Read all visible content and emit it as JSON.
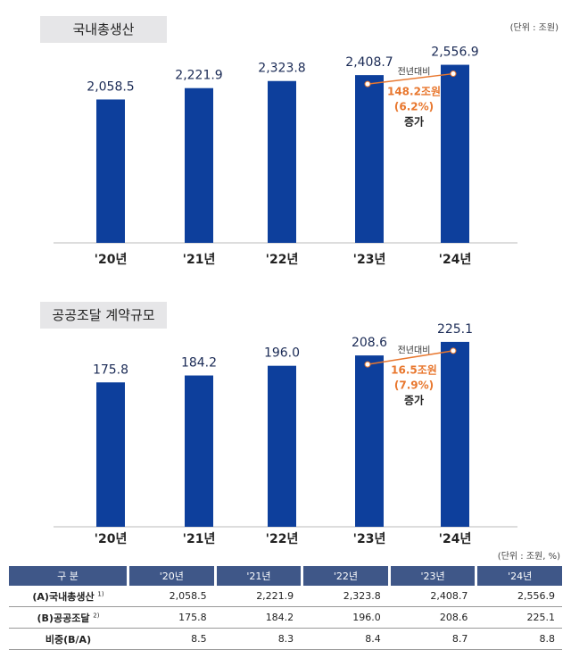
{
  "chart_data": [
    {
      "type": "bar",
      "title": "국내총생산",
      "unit": "(단위 : 조원)",
      "categories": [
        "'20년",
        "'21년",
        "'22년",
        "'23년",
        "'24년"
      ],
      "values": [
        2058.5,
        2221.9,
        2323.8,
        2408.7,
        2556.9
      ],
      "value_labels": [
        "2,058.5",
        "2,221.9",
        "2,323.8",
        "2,408.7",
        "2,556.9"
      ],
      "bar_color": "#0d3f9c",
      "annotation": {
        "label": "전년대비",
        "amount": "148.2조원",
        "percent": "(6.2%)",
        "suffix": "증가",
        "color": "#e8772e"
      }
    },
    {
      "type": "bar",
      "title": "공공조달 계약규모",
      "categories": [
        "'20년",
        "'21년",
        "'22년",
        "'23년",
        "'24년"
      ],
      "values": [
        175.8,
        184.2,
        196.0,
        208.6,
        225.1
      ],
      "value_labels": [
        "175.8",
        "184.2",
        "196.0",
        "208.6",
        "225.1"
      ],
      "bar_color": "#0d3f9c",
      "annotation": {
        "label": "전년대비",
        "amount": "16.5조원",
        "percent": "(7.9%)",
        "suffix": "증가",
        "color": "#e8772e"
      }
    }
  ],
  "table": {
    "unit": "(단위 : 조원, %)",
    "headers": [
      "구  분",
      "'20년",
      "'21년",
      "'22년",
      "'23년",
      "'24년"
    ],
    "rows": [
      {
        "label": "(A)국내총생산",
        "note": "1)",
        "values": [
          "2,058.5",
          "2,221.9",
          "2,323.8",
          "2,408.7",
          "2,556.9"
        ]
      },
      {
        "label": "(B)공공조달",
        "note": "2)",
        "values": [
          "175.8",
          "184.2",
          "196.0",
          "208.6",
          "225.1"
        ]
      },
      {
        "label": "비중(B/A)",
        "note": "",
        "values": [
          "8.5",
          "8.3",
          "8.4",
          "8.7",
          "8.8"
        ]
      }
    ]
  }
}
